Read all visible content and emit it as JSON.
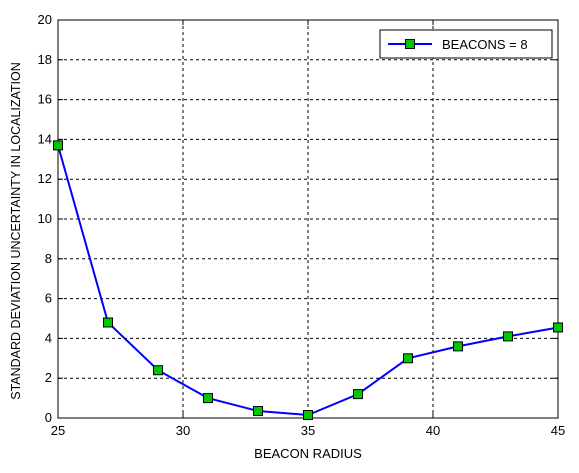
{
  "chart_data": {
    "type": "line",
    "title": "",
    "xlabel": "BEACON RADIUS",
    "ylabel": "STANDARD DEVIATION UNCERTAINTY IN LOCALIZATION",
    "xlim": [
      25,
      45
    ],
    "ylim": [
      0,
      20
    ],
    "xticks": [
      25,
      30,
      35,
      40,
      45
    ],
    "yticks": [
      0,
      2,
      4,
      6,
      8,
      10,
      12,
      14,
      16,
      18,
      20
    ],
    "grid": true,
    "legend_position": "top-right",
    "series": [
      {
        "name": "BEACONS = 8",
        "color": "#0000ff",
        "marker": "square",
        "marker_fill": "#00c800",
        "x": [
          25,
          27,
          29,
          31,
          33,
          35,
          37,
          39,
          41,
          43,
          45
        ],
        "y": [
          13.7,
          4.8,
          2.4,
          1.0,
          0.35,
          0.15,
          1.2,
          3.0,
          3.6,
          4.1,
          4.55
        ]
      }
    ]
  }
}
